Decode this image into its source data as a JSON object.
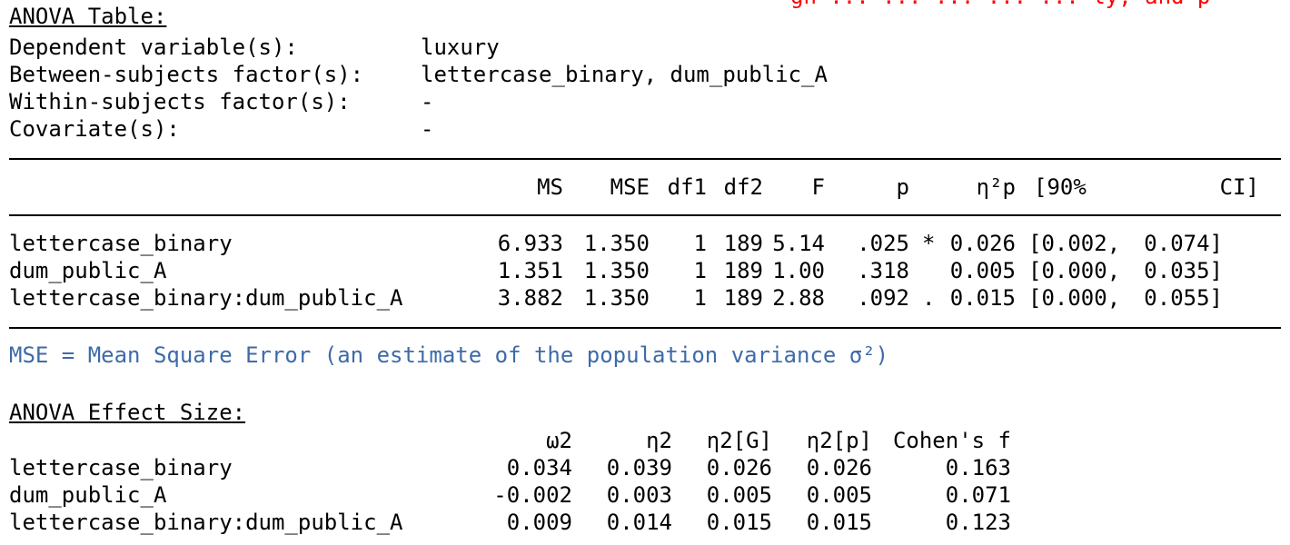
{
  "top_note": "gn ... ... ... ... ... ly, and p",
  "anova": {
    "heading": "ANOVA Table:",
    "meta": [
      {
        "label": "Dependent variable(s):",
        "value": "luxury"
      },
      {
        "label": "Between-subjects factor(s):",
        "value": "lettercase_binary, dum_public_A"
      },
      {
        "label": "Within-subjects factor(s):",
        "value": "-"
      },
      {
        "label": "Covariate(s):",
        "value": "-"
      }
    ],
    "columns": [
      "MS",
      "MSE",
      "df1",
      "df2",
      "F",
      "p",
      "η²p",
      "[90%",
      "CI]"
    ],
    "rows": [
      {
        "term": "lettercase_binary",
        "ms": "6.933",
        "mse": "1.350",
        "df1": "1",
        "df2": "189",
        "f": "5.14",
        "p": ".025",
        "sig": "*",
        "eta": "0.026",
        "ci_low": "[0.002,",
        "ci_high": "0.074]"
      },
      {
        "term": "dum_public_A",
        "ms": "1.351",
        "mse": "1.350",
        "df1": "1",
        "df2": "189",
        "f": "1.00",
        "p": ".318",
        "sig": "",
        "eta": "0.005",
        "ci_low": "[0.000,",
        "ci_high": "0.035]"
      },
      {
        "term": "lettercase_binary:dum_public_A",
        "ms": "3.882",
        "mse": "1.350",
        "df1": "1",
        "df2": "189",
        "f": "2.88",
        "p": ".092",
        "sig": ".",
        "eta": "0.015",
        "ci_low": "[0.000,",
        "ci_high": "0.055]"
      }
    ],
    "footnote": "MSE = Mean Square Error (an estimate of the population variance σ²)"
  },
  "effect": {
    "heading": "ANOVA Effect Size:",
    "columns": [
      "ω2",
      "η2",
      "η2[G]",
      "η2[p]",
      "Cohen's f"
    ],
    "rows": [
      {
        "term": "lettercase_binary",
        "values": [
          "0.034",
          "0.039",
          "0.026",
          "0.026",
          "0.163"
        ]
      },
      {
        "term": "dum_public_A",
        "values": [
          "-0.002",
          "0.003",
          "0.005",
          "0.005",
          "0.071"
        ]
      },
      {
        "term": "lettercase_binary:dum_public_A",
        "values": [
          "0.009",
          "0.014",
          "0.015",
          "0.015",
          "0.123"
        ]
      }
    ]
  },
  "colors": {
    "text": "#000000",
    "note": "#3e6ba8",
    "top_note": "#ff0000"
  }
}
